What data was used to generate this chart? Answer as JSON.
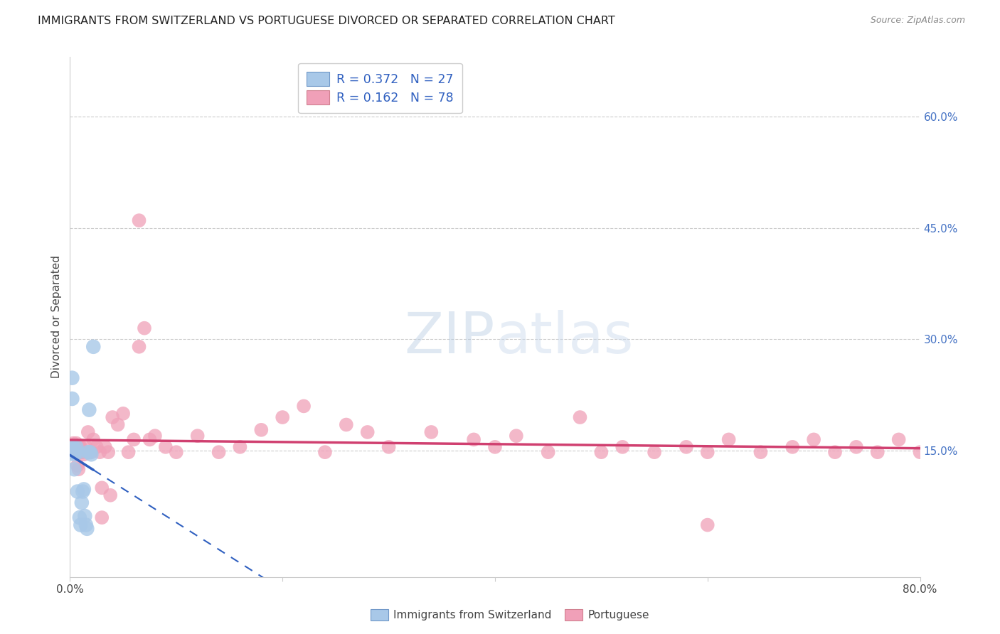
{
  "title": "IMMIGRANTS FROM SWITZERLAND VS PORTUGUESE DIVORCED OR SEPARATED CORRELATION CHART",
  "source": "Source: ZipAtlas.com",
  "ylabel": "Divorced or Separated",
  "xlim": [
    0.0,
    0.8
  ],
  "ylim": [
    -0.02,
    0.68
  ],
  "yticks_right": [
    0.15,
    0.3,
    0.45,
    0.6
  ],
  "ytick_labels_right": [
    "15.0%",
    "30.0%",
    "45.0%",
    "60.0%"
  ],
  "legend_labels": [
    "Immigrants from Switzerland",
    "Portuguese"
  ],
  "R_swiss": 0.372,
  "N_swiss": 27,
  "R_port": 0.162,
  "N_port": 78,
  "color_swiss": "#a8c8e8",
  "color_port": "#f0a0b8",
  "trendline_swiss_color": "#3060c0",
  "trendline_port_color": "#d04070",
  "watermark": "ZIPatlas",
  "swiss_x": [
    0.001,
    0.002,
    0.002,
    0.002,
    0.003,
    0.003,
    0.003,
    0.004,
    0.004,
    0.005,
    0.005,
    0.006,
    0.007,
    0.008,
    0.009,
    0.01,
    0.011,
    0.012,
    0.013,
    0.014,
    0.015,
    0.016,
    0.017,
    0.018,
    0.019,
    0.02,
    0.022
  ],
  "swiss_y": [
    0.148,
    0.248,
    0.22,
    0.155,
    0.155,
    0.148,
    0.148,
    0.145,
    0.125,
    0.148,
    0.148,
    0.155,
    0.095,
    0.148,
    0.06,
    0.05,
    0.08,
    0.095,
    0.098,
    0.062,
    0.05,
    0.045,
    0.148,
    0.205,
    0.148,
    0.145,
    0.29
  ],
  "port_x": [
    0.001,
    0.001,
    0.002,
    0.002,
    0.002,
    0.003,
    0.003,
    0.003,
    0.004,
    0.004,
    0.005,
    0.005,
    0.006,
    0.006,
    0.007,
    0.007,
    0.008,
    0.008,
    0.009,
    0.009,
    0.01,
    0.01,
    0.012,
    0.013,
    0.015,
    0.017,
    0.02,
    0.022,
    0.025,
    0.028,
    0.03,
    0.033,
    0.036,
    0.038,
    0.04,
    0.045,
    0.05,
    0.055,
    0.06,
    0.065,
    0.07,
    0.075,
    0.08,
    0.09,
    0.1,
    0.12,
    0.14,
    0.16,
    0.18,
    0.2,
    0.22,
    0.24,
    0.26,
    0.28,
    0.3,
    0.34,
    0.38,
    0.4,
    0.42,
    0.45,
    0.48,
    0.5,
    0.52,
    0.55,
    0.58,
    0.6,
    0.62,
    0.65,
    0.68,
    0.7,
    0.72,
    0.74,
    0.76,
    0.78,
    0.8,
    0.03,
    0.065,
    0.6
  ],
  "port_y": [
    0.155,
    0.148,
    0.155,
    0.148,
    0.155,
    0.148,
    0.155,
    0.16,
    0.148,
    0.155,
    0.148,
    0.155,
    0.148,
    0.16,
    0.13,
    0.148,
    0.125,
    0.148,
    0.148,
    0.155,
    0.148,
    0.155,
    0.148,
    0.145,
    0.155,
    0.175,
    0.148,
    0.165,
    0.155,
    0.148,
    0.1,
    0.155,
    0.148,
    0.09,
    0.195,
    0.185,
    0.2,
    0.148,
    0.165,
    0.29,
    0.315,
    0.165,
    0.17,
    0.155,
    0.148,
    0.17,
    0.148,
    0.155,
    0.178,
    0.195,
    0.21,
    0.148,
    0.185,
    0.175,
    0.155,
    0.175,
    0.165,
    0.155,
    0.17,
    0.148,
    0.195,
    0.148,
    0.155,
    0.148,
    0.155,
    0.148,
    0.165,
    0.148,
    0.155,
    0.165,
    0.148,
    0.155,
    0.148,
    0.165,
    0.148,
    0.06,
    0.46,
    0.05
  ]
}
